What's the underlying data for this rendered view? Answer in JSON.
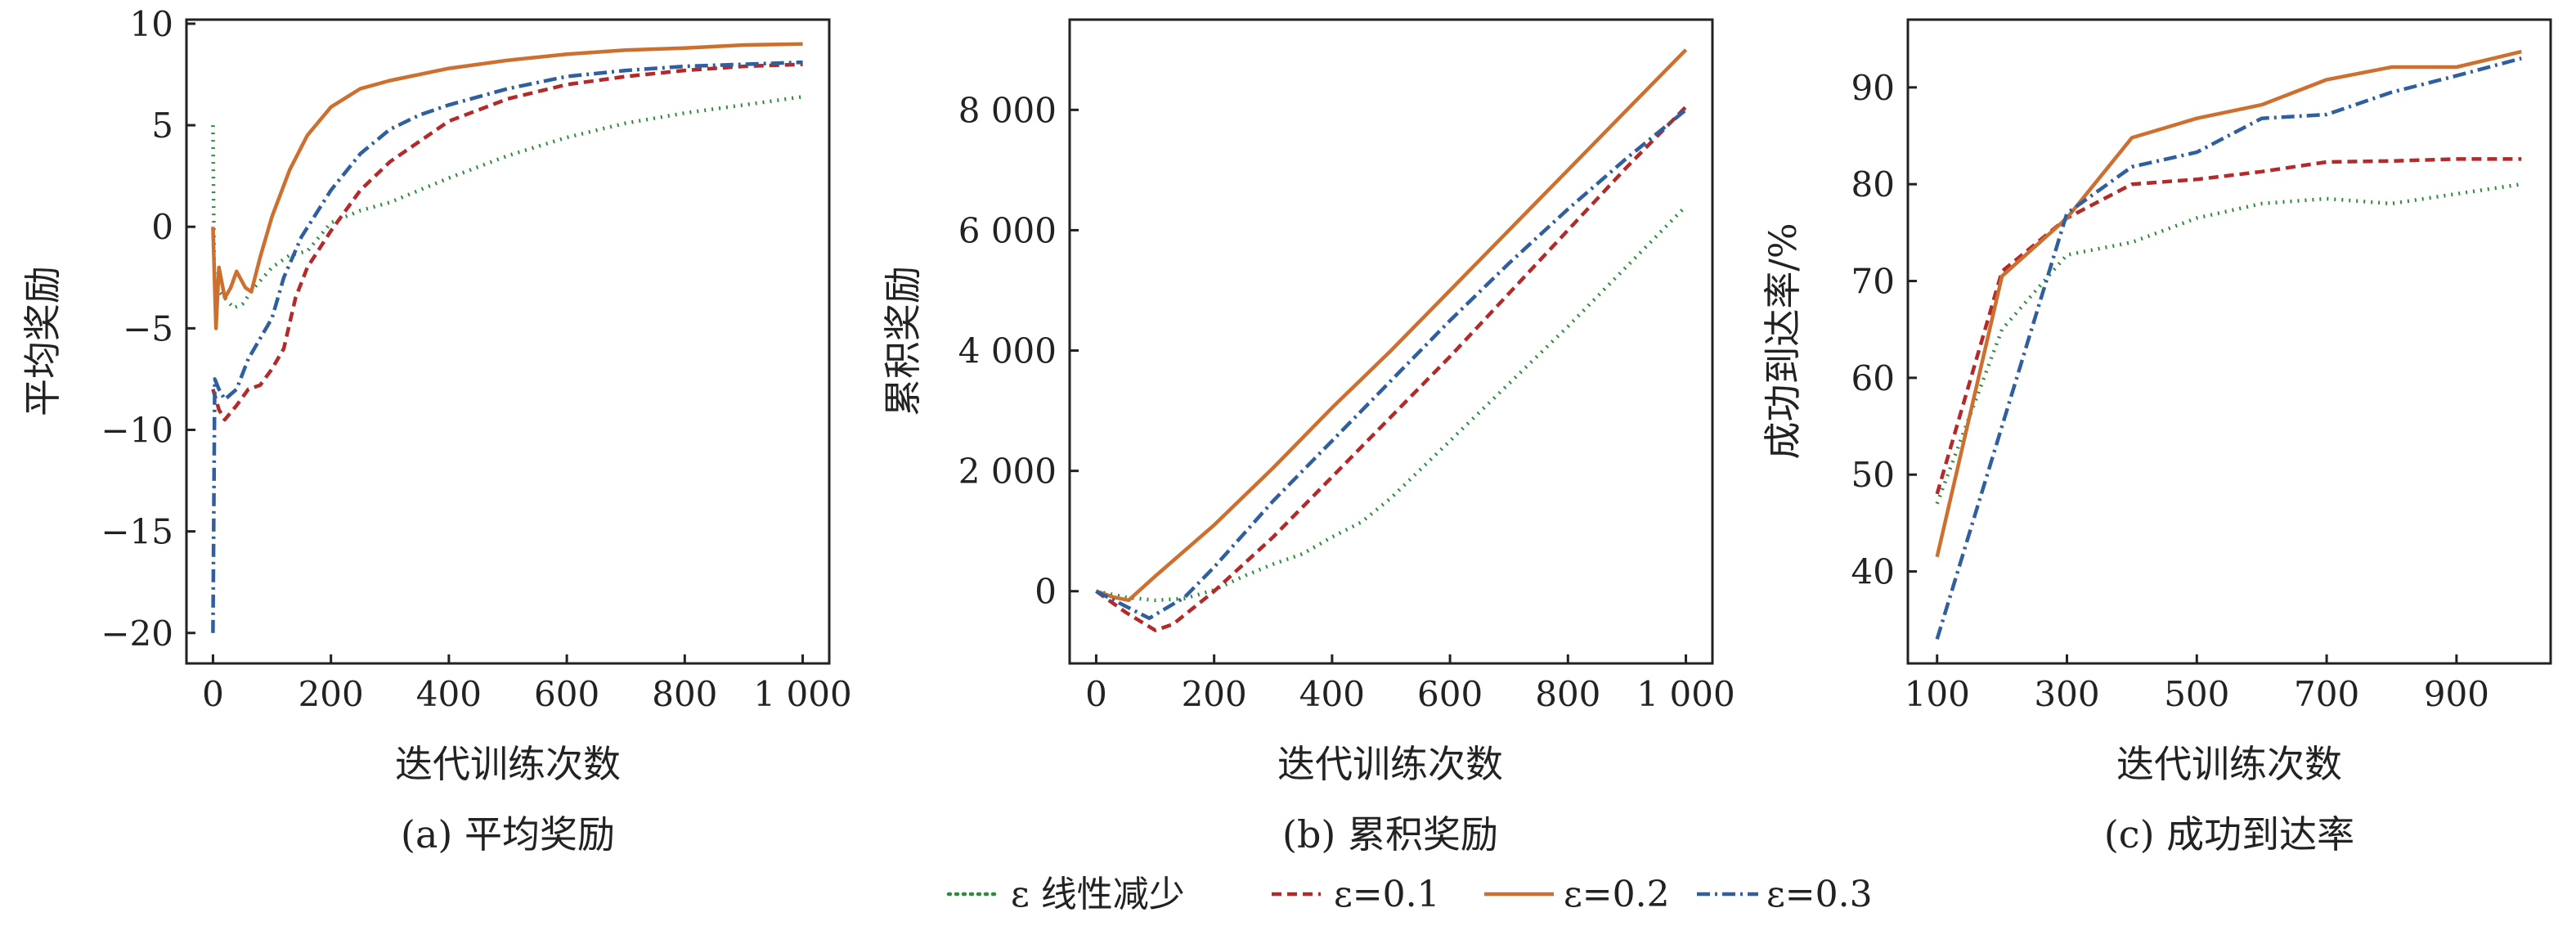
{
  "chart_data": [
    {
      "type": "line",
      "caption": "(a) 平均奖励",
      "xlabel": "迭代训练次数",
      "ylabel": "平均奖励",
      "xlim": [
        -45,
        1045
      ],
      "ylim": [
        -21.5,
        10.2
      ],
      "xticks": [
        0,
        200,
        400,
        600,
        800,
        1000
      ],
      "xtick_labels": [
        "0",
        "200",
        "400",
        "600",
        "800",
        "1 000"
      ],
      "yticks": [
        -20,
        -15,
        -10,
        -5,
        0,
        5,
        10
      ],
      "ytick_labels": [
        "−20",
        "−15",
        "−10",
        "−5",
        "0",
        "5",
        "10"
      ],
      "series": [
        {
          "name": "ε 线性减少",
          "color": "#2e8b3e",
          "dash": "dotted",
          "points": [
            [
              0,
              5
            ],
            [
              2,
              -2
            ],
            [
              5,
              -3
            ],
            [
              20,
              -3.5
            ],
            [
              35,
              -4
            ],
            [
              50,
              -3.8
            ],
            [
              70,
              -3
            ],
            [
              100,
              -2
            ],
            [
              130,
              -1.4
            ],
            [
              160,
              -1.2
            ],
            [
              200,
              0.2
            ],
            [
              250,
              0.8
            ],
            [
              300,
              1.2
            ],
            [
              400,
              2.4
            ],
            [
              500,
              3.5
            ],
            [
              600,
              4.4
            ],
            [
              700,
              5.1
            ],
            [
              800,
              5.6
            ],
            [
              900,
              6
            ],
            [
              1000,
              6.4
            ]
          ]
        },
        {
          "name": "ε=0.1",
          "color": "#b22a2a",
          "dash": "dashed",
          "points": [
            [
              0,
              -8
            ],
            [
              10,
              -9
            ],
            [
              20,
              -9.5
            ],
            [
              40,
              -8.8
            ],
            [
              60,
              -8
            ],
            [
              80,
              -7.8
            ],
            [
              100,
              -7
            ],
            [
              120,
              -6
            ],
            [
              140,
              -3.5
            ],
            [
              160,
              -2
            ],
            [
              200,
              -0.2
            ],
            [
              250,
              1.8
            ],
            [
              300,
              3.2
            ],
            [
              400,
              5.2
            ],
            [
              500,
              6.3
            ],
            [
              600,
              7
            ],
            [
              700,
              7.4
            ],
            [
              800,
              7.7
            ],
            [
              900,
              7.9
            ],
            [
              1000,
              8
            ]
          ]
        },
        {
          "name": "ε=0.2",
          "color": "#cd6f2e",
          "dash": "solid",
          "points": [
            [
              0,
              0
            ],
            [
              5,
              -5
            ],
            [
              10,
              -2
            ],
            [
              20,
              -3.5
            ],
            [
              30,
              -3
            ],
            [
              40,
              -2.2
            ],
            [
              55,
              -3
            ],
            [
              65,
              -3.2
            ],
            [
              80,
              -1.5
            ],
            [
              100,
              0.5
            ],
            [
              130,
              2.8
            ],
            [
              160,
              4.5
            ],
            [
              200,
              5.9
            ],
            [
              250,
              6.8
            ],
            [
              300,
              7.2
            ],
            [
              400,
              7.8
            ],
            [
              500,
              8.2
            ],
            [
              600,
              8.5
            ],
            [
              700,
              8.7
            ],
            [
              800,
              8.8
            ],
            [
              900,
              8.95
            ],
            [
              1000,
              9
            ]
          ]
        },
        {
          "name": "ε=0.3",
          "color": "#2f5f9e",
          "dash": "dashdot",
          "points": [
            [
              0,
              -20
            ],
            [
              3,
              -7.5
            ],
            [
              10,
              -8
            ],
            [
              20,
              -8.5
            ],
            [
              40,
              -8
            ],
            [
              60,
              -6.5
            ],
            [
              80,
              -5.5
            ],
            [
              100,
              -4.5
            ],
            [
              120,
              -2.5
            ],
            [
              150,
              -0.5
            ],
            [
              200,
              1.8
            ],
            [
              250,
              3.6
            ],
            [
              300,
              4.8
            ],
            [
              350,
              5.5
            ],
            [
              400,
              6
            ],
            [
              500,
              6.8
            ],
            [
              600,
              7.4
            ],
            [
              700,
              7.7
            ],
            [
              800,
              7.9
            ],
            [
              900,
              8
            ],
            [
              1000,
              8.1
            ]
          ]
        }
      ]
    },
    {
      "type": "line",
      "caption": "(b) 累积奖励",
      "xlabel": "迭代训练次数",
      "ylabel": "累积奖励",
      "xlim": [
        -45,
        1045
      ],
      "ylim": [
        -1200,
        9500
      ],
      "xticks": [
        0,
        200,
        400,
        600,
        800,
        1000
      ],
      "xtick_labels": [
        "0",
        "200",
        "400",
        "600",
        "800",
        "1 000"
      ],
      "yticks": [
        0,
        2000,
        4000,
        6000,
        8000
      ],
      "ytick_labels": [
        "0",
        "2 000",
        "4 000",
        "6 000",
        "8 000"
      ],
      "series": [
        {
          "name": "ε 线性减少",
          "color": "#2e8b3e",
          "dash": "dotted",
          "points": [
            [
              0,
              0
            ],
            [
              50,
              -100
            ],
            [
              100,
              -150
            ],
            [
              150,
              -120
            ],
            [
              200,
              20
            ],
            [
              250,
              250
            ],
            [
              300,
              450
            ],
            [
              350,
              620
            ],
            [
              400,
              900
            ],
            [
              450,
              1150
            ],
            [
              500,
              1550
            ],
            [
              600,
              2500
            ],
            [
              700,
              3450
            ],
            [
              800,
              4400
            ],
            [
              900,
              5400
            ],
            [
              1000,
              6400
            ]
          ]
        },
        {
          "name": "ε=0.1",
          "color": "#b22a2a",
          "dash": "dashed",
          "points": [
            [
              0,
              0
            ],
            [
              50,
              -350
            ],
            [
              100,
              -650
            ],
            [
              130,
              -550
            ],
            [
              200,
              0
            ],
            [
              300,
              900
            ],
            [
              400,
              1900
            ],
            [
              500,
              2900
            ],
            [
              600,
              3900
            ],
            [
              700,
              4950
            ],
            [
              800,
              6000
            ],
            [
              900,
              7050
            ],
            [
              1000,
              8050
            ]
          ]
        },
        {
          "name": "ε=0.2",
          "color": "#cd6f2e",
          "dash": "solid",
          "points": [
            [
              0,
              0
            ],
            [
              30,
              -100
            ],
            [
              55,
              -150
            ],
            [
              100,
              250
            ],
            [
              200,
              1100
            ],
            [
              300,
              2050
            ],
            [
              400,
              3050
            ],
            [
              500,
              4000
            ],
            [
              600,
              5000
            ],
            [
              700,
              6000
            ],
            [
              800,
              7000
            ],
            [
              900,
              8000
            ],
            [
              1000,
              9000
            ]
          ]
        },
        {
          "name": "ε=0.3",
          "color": "#2f5f9e",
          "dash": "dashdot",
          "points": [
            [
              0,
              0
            ],
            [
              50,
              -250
            ],
            [
              90,
              -450
            ],
            [
              150,
              -100
            ],
            [
              200,
              400
            ],
            [
              300,
              1500
            ],
            [
              400,
              2500
            ],
            [
              500,
              3500
            ],
            [
              600,
              4500
            ],
            [
              700,
              5450
            ],
            [
              800,
              6350
            ],
            [
              900,
              7200
            ],
            [
              1000,
              8000
            ]
          ]
        }
      ]
    },
    {
      "type": "line",
      "caption": "(c) 成功到达率",
      "xlabel": "迭代训练次数",
      "ylabel": "成功到达率/%",
      "xlim": [
        55,
        1045
      ],
      "ylim": [
        30.5,
        97
      ],
      "xticks": [
        100,
        300,
        500,
        700,
        900
      ],
      "xtick_labels": [
        "100",
        "300",
        "500",
        "700",
        "900"
      ],
      "yticks": [
        40,
        50,
        60,
        70,
        80,
        90
      ],
      "ytick_labels": [
        "40",
        "50",
        "60",
        "70",
        "80",
        "90"
      ],
      "series": [
        {
          "name": "ε 线性减少",
          "color": "#2e8b3e",
          "dash": "dotted",
          "points": [
            [
              100,
              47
            ],
            [
              200,
              65
            ],
            [
              300,
              72.7
            ],
            [
              400,
              74
            ],
            [
              500,
              76.5
            ],
            [
              600,
              78
            ],
            [
              700,
              78.5
            ],
            [
              800,
              78
            ],
            [
              900,
              79
            ],
            [
              1000,
              80
            ]
          ]
        },
        {
          "name": "ε=0.1",
          "color": "#b22a2a",
          "dash": "dashed",
          "points": [
            [
              100,
              48
            ],
            [
              200,
              71
            ],
            [
              300,
              76.5
            ],
            [
              400,
              80
            ],
            [
              500,
              80.5
            ],
            [
              600,
              81.3
            ],
            [
              700,
              82.3
            ],
            [
              800,
              82.4
            ],
            [
              900,
              82.6
            ],
            [
              1000,
              82.6
            ]
          ]
        },
        {
          "name": "ε=0.2",
          "color": "#cd6f2e",
          "dash": "solid",
          "points": [
            [
              100,
              41.5
            ],
            [
              200,
              70.5
            ],
            [
              300,
              76.5
            ],
            [
              400,
              84.8
            ],
            [
              500,
              86.8
            ],
            [
              600,
              88.2
            ],
            [
              700,
              90.8
            ],
            [
              800,
              92.1
            ],
            [
              900,
              92.1
            ],
            [
              1000,
              93.7
            ]
          ]
        },
        {
          "name": "ε=0.3",
          "color": "#2f5f9e",
          "dash": "dashdot",
          "points": [
            [
              100,
              33
            ],
            [
              200,
              55
            ],
            [
              300,
              77
            ],
            [
              400,
              81.8
            ],
            [
              500,
              83.3
            ],
            [
              600,
              86.8
            ],
            [
              700,
              87.2
            ],
            [
              800,
              89.5
            ],
            [
              900,
              91.2
            ],
            [
              1000,
              93
            ]
          ]
        }
      ]
    }
  ],
  "legend": {
    "items": [
      {
        "label": "ε 线性减少",
        "color": "#2e8b3e",
        "dash": "dotted"
      },
      {
        "label": "ε=0.1",
        "color": "#b22a2a",
        "dash": "dashed"
      },
      {
        "label": "ε=0.2",
        "color": "#cd6f2e",
        "dash": "solid"
      },
      {
        "label": "ε=0.3",
        "color": "#2f5f9e",
        "dash": "dashdot"
      }
    ]
  }
}
